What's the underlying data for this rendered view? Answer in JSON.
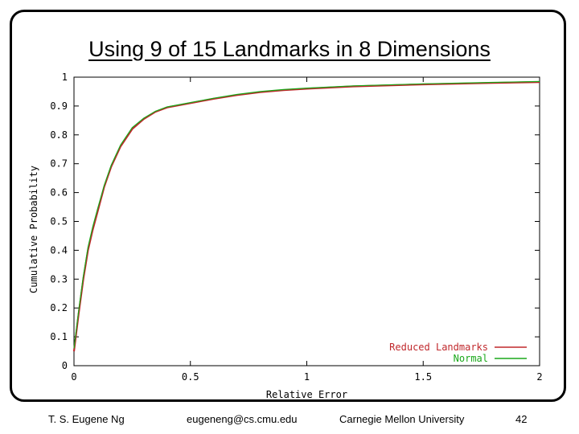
{
  "slide": {
    "title": "Using 9 of 15 Landmarks in 8 Dimensions",
    "footer": {
      "author": "T. S. Eugene Ng",
      "email": "eugeneng@cs.cmu.edu",
      "university": "Carnegie Mellon University",
      "page": "42"
    }
  },
  "chart_data": {
    "type": "line",
    "xlabel": "Relative Error",
    "ylabel": "Cumulative Probability",
    "xlim": [
      0,
      2
    ],
    "ylim": [
      0,
      1
    ],
    "xticks": [
      "0",
      "0.5",
      "1",
      "1.5",
      "2"
    ],
    "yticks": [
      "0",
      "0.1",
      "0.2",
      "0.3",
      "0.4",
      "0.5",
      "0.6",
      "0.7",
      "0.8",
      "0.9",
      "1"
    ],
    "grid": false,
    "legend_position": "bottom-right",
    "series": [
      {
        "name": "Reduced Landmarks",
        "color": "#c0282c",
        "x": [
          0,
          0.02,
          0.04,
          0.06,
          0.08,
          0.1,
          0.13,
          0.16,
          0.2,
          0.25,
          0.3,
          0.35,
          0.4,
          0.5,
          0.6,
          0.7,
          0.8,
          0.9,
          1.0,
          1.2,
          1.5,
          1.8,
          2.0
        ],
        "y": [
          0.05,
          0.18,
          0.3,
          0.4,
          0.47,
          0.53,
          0.62,
          0.69,
          0.76,
          0.82,
          0.855,
          0.88,
          0.895,
          0.91,
          0.925,
          0.938,
          0.948,
          0.955,
          0.96,
          0.968,
          0.975,
          0.98,
          0.983
        ]
      },
      {
        "name": "Normal",
        "color": "#1aa81a",
        "x": [
          0,
          0.02,
          0.04,
          0.06,
          0.08,
          0.1,
          0.13,
          0.16,
          0.2,
          0.25,
          0.3,
          0.35,
          0.4,
          0.5,
          0.6,
          0.7,
          0.8,
          0.9,
          1.0,
          1.2,
          1.5,
          1.8,
          2.0
        ],
        "y": [
          0.06,
          0.19,
          0.31,
          0.41,
          0.48,
          0.54,
          0.625,
          0.695,
          0.765,
          0.825,
          0.858,
          0.882,
          0.897,
          0.912,
          0.927,
          0.94,
          0.95,
          0.957,
          0.962,
          0.97,
          0.977,
          0.982,
          0.985
        ]
      }
    ]
  }
}
